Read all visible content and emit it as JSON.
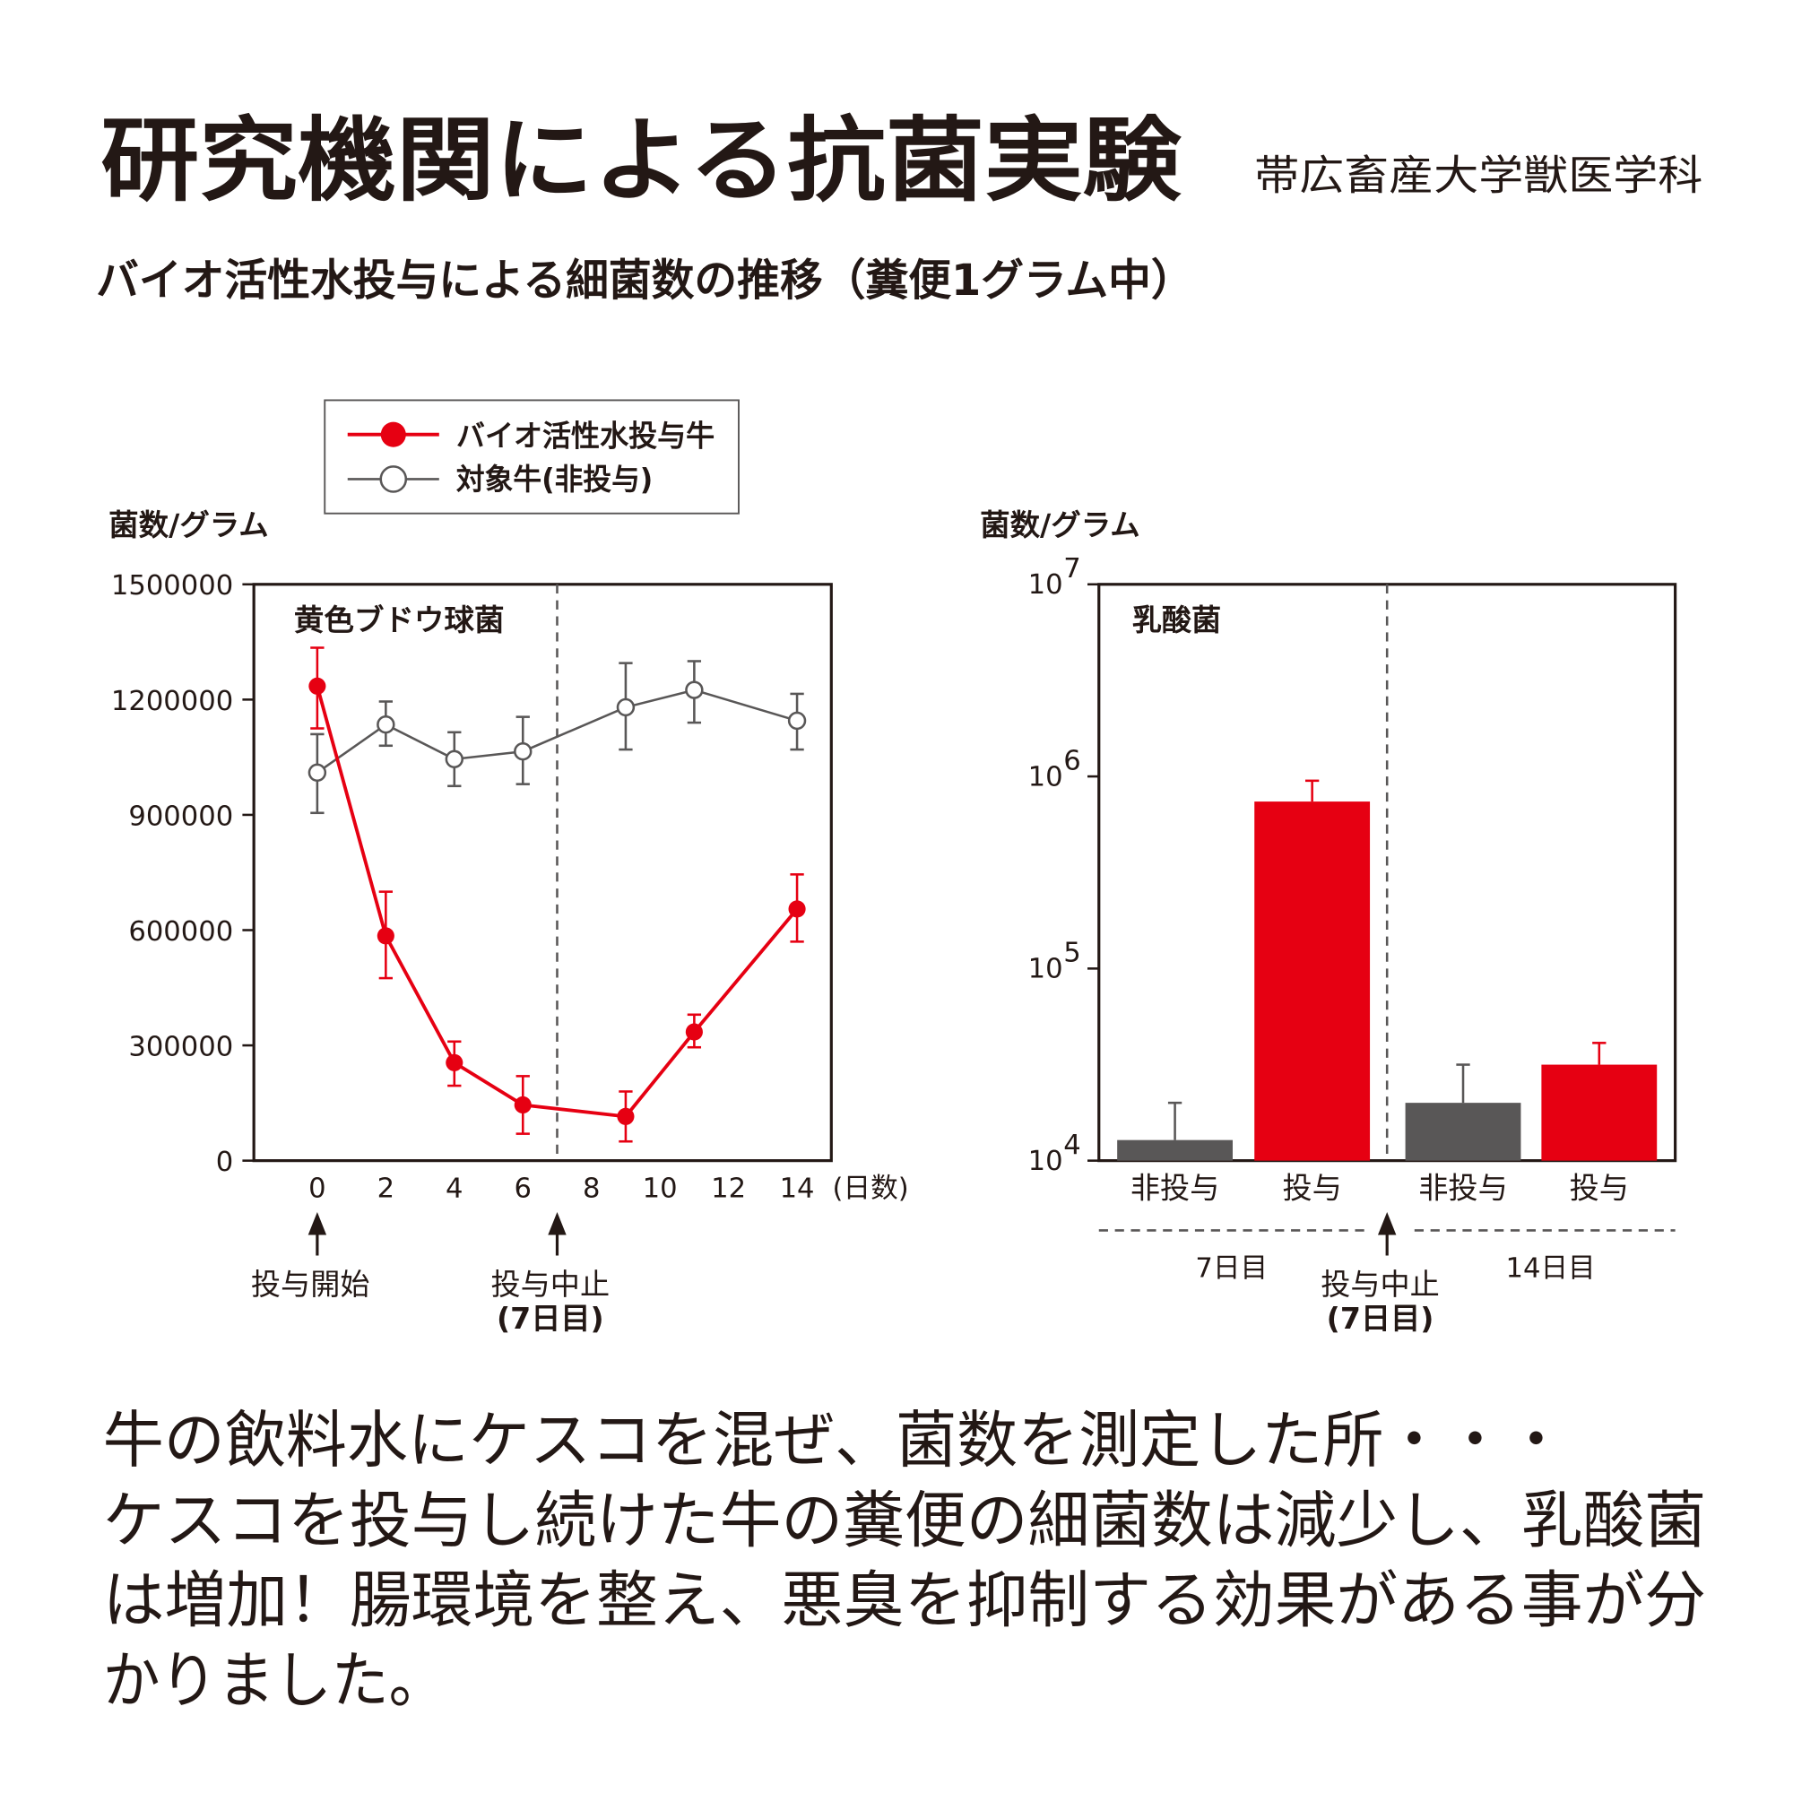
{
  "header": {
    "title": "研究機関による抗菌実験",
    "institution": "帯広畜産大学獣医学科",
    "subtitle": "バイオ活性水投与による細菌数の推移（糞便1グラム中）"
  },
  "colors": {
    "red": "#e60012",
    "gray": "#595757",
    "text": "#231815"
  },
  "body_text": [
    "牛の飲料水にケスコを混ぜ、菌数を測定した所・・・",
    "ケスコを投与し続けた牛の糞便の細菌数は減少し、乳酸菌",
    "は増加！腸環境を整え、悪臭を抑制する効果がある事が分",
    "かりました。"
  ],
  "chart_data": [
    {
      "type": "line",
      "title": "黄色ブドウ球菌",
      "ylabel": "菌数/グラム",
      "xlabel": "(日数)",
      "ylim": [
        0,
        1500000
      ],
      "xlim": [
        -1.85,
        15
      ],
      "yticks": [
        0,
        300000,
        600000,
        900000,
        1200000,
        1500000
      ],
      "ytick_labels": [
        "0",
        "300000",
        "600000",
        "900000",
        "1200000",
        "1500000"
      ],
      "xticks": [
        0,
        2,
        4,
        6,
        8,
        10,
        12,
        14
      ],
      "xtick_labels": [
        "0",
        "2",
        "4",
        "6",
        "8",
        "10",
        "12",
        "14"
      ],
      "grid": false,
      "legend_position": "top-center",
      "series": [
        {
          "name": "バイオ活性水投与牛",
          "marker": "filled-circle",
          "x": [
            0,
            2,
            4,
            6,
            9,
            11,
            14
          ],
          "values": [
            1235000,
            585000,
            255000,
            145000,
            115000,
            335000,
            655000
          ],
          "err_high": [
            1335000,
            700000,
            310000,
            220000,
            180000,
            380000,
            745000
          ],
          "err_low": [
            1125000,
            475000,
            195000,
            70000,
            50000,
            295000,
            570000
          ]
        },
        {
          "name": "対象牛(非投与)",
          "marker": "open-circle",
          "x": [
            0,
            2,
            4,
            6,
            9,
            11,
            14
          ],
          "values": [
            1010000,
            1135000,
            1045000,
            1065000,
            1180000,
            1225000,
            1145000
          ],
          "err_high": [
            1110000,
            1195000,
            1115000,
            1155000,
            1295000,
            1300000,
            1215000
          ],
          "err_low": [
            905000,
            1080000,
            975000,
            980000,
            1070000,
            1140000,
            1070000
          ]
        }
      ],
      "reference_line_day": 7,
      "annotations": [
        {
          "day": 0,
          "text": "投与開始"
        },
        {
          "day": 7,
          "text": "投与中止",
          "text2": "(7日目)"
        }
      ]
    },
    {
      "type": "bar",
      "title": "乳酸菌",
      "ylabel": "菌数/グラム",
      "yscale": "log",
      "ylim": [
        10000,
        10000000
      ],
      "ytick_base": "10",
      "ytick_exponents": [
        "4",
        "5",
        "6",
        "7"
      ],
      "categories": [
        "非投与",
        "投与",
        "非投与",
        "投与"
      ],
      "values": [
        12800,
        740000,
        20000,
        31600
      ],
      "err_high": [
        20000,
        950000,
        31600,
        41000
      ],
      "bar_colors": [
        "gray",
        "red",
        "gray",
        "red"
      ],
      "groups": [
        "7日目",
        "14日目"
      ],
      "annotation": {
        "text": "投与中止",
        "text2": "(7日目)"
      }
    }
  ]
}
